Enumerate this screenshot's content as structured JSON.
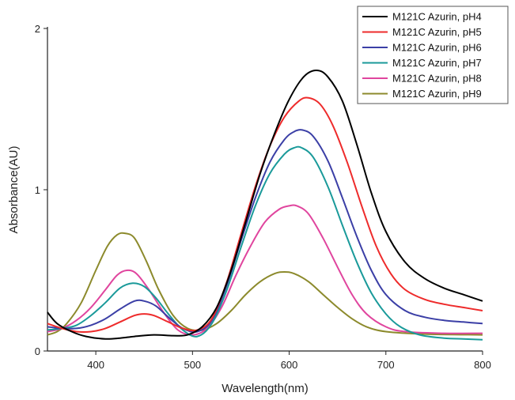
{
  "chart_data": {
    "type": "line",
    "title": "",
    "xlabel": "Wavelength(nm)",
    "ylabel": "Absorbance(AU)",
    "xlim": [
      350,
      800
    ],
    "ylim": [
      0,
      2
    ],
    "xticks": [
      400,
      500,
      600,
      700,
      800
    ],
    "yticks": [
      0,
      1,
      2
    ],
    "grid": false,
    "legend_position": "top-right",
    "series": [
      {
        "name": "M121C Azurin, pH4",
        "color": "#000000",
        "points": [
          [
            350,
            0.24
          ],
          [
            360,
            0.17
          ],
          [
            375,
            0.12
          ],
          [
            390,
            0.09
          ],
          [
            410,
            0.075
          ],
          [
            425,
            0.08
          ],
          [
            440,
            0.09
          ],
          [
            460,
            0.1
          ],
          [
            480,
            0.095
          ],
          [
            495,
            0.1
          ],
          [
            510,
            0.15
          ],
          [
            525,
            0.27
          ],
          [
            540,
            0.5
          ],
          [
            555,
            0.8
          ],
          [
            570,
            1.1
          ],
          [
            585,
            1.35
          ],
          [
            600,
            1.56
          ],
          [
            615,
            1.7
          ],
          [
            628,
            1.74
          ],
          [
            640,
            1.7
          ],
          [
            655,
            1.55
          ],
          [
            670,
            1.28
          ],
          [
            685,
            0.98
          ],
          [
            700,
            0.74
          ],
          [
            720,
            0.55
          ],
          [
            740,
            0.45
          ],
          [
            760,
            0.39
          ],
          [
            780,
            0.35
          ],
          [
            800,
            0.31
          ]
        ]
      },
      {
        "name": "M121C Azurin, pH5",
        "color": "#ee2b2b",
        "points": [
          [
            350,
            0.17
          ],
          [
            365,
            0.14
          ],
          [
            380,
            0.12
          ],
          [
            395,
            0.12
          ],
          [
            410,
            0.14
          ],
          [
            425,
            0.18
          ],
          [
            440,
            0.22
          ],
          [
            450,
            0.23
          ],
          [
            460,
            0.22
          ],
          [
            475,
            0.18
          ],
          [
            490,
            0.14
          ],
          [
            505,
            0.13
          ],
          [
            520,
            0.2
          ],
          [
            535,
            0.42
          ],
          [
            550,
            0.72
          ],
          [
            565,
            1.02
          ],
          [
            580,
            1.27
          ],
          [
            595,
            1.45
          ],
          [
            610,
            1.55
          ],
          [
            620,
            1.57
          ],
          [
            632,
            1.53
          ],
          [
            645,
            1.4
          ],
          [
            660,
            1.17
          ],
          [
            675,
            0.9
          ],
          [
            690,
            0.65
          ],
          [
            705,
            0.48
          ],
          [
            720,
            0.38
          ],
          [
            740,
            0.32
          ],
          [
            760,
            0.29
          ],
          [
            780,
            0.27
          ],
          [
            800,
            0.25
          ]
        ]
      },
      {
        "name": "M121C Azurin, pH6",
        "color": "#3b3fa6",
        "points": [
          [
            350,
            0.15
          ],
          [
            365,
            0.14
          ],
          [
            380,
            0.14
          ],
          [
            395,
            0.16
          ],
          [
            410,
            0.2
          ],
          [
            425,
            0.26
          ],
          [
            440,
            0.31
          ],
          [
            450,
            0.31
          ],
          [
            462,
            0.28
          ],
          [
            475,
            0.21
          ],
          [
            490,
            0.14
          ],
          [
            505,
            0.12
          ],
          [
            520,
            0.19
          ],
          [
            535,
            0.4
          ],
          [
            550,
            0.68
          ],
          [
            565,
            0.95
          ],
          [
            580,
            1.17
          ],
          [
            595,
            1.31
          ],
          [
            605,
            1.36
          ],
          [
            614,
            1.37
          ],
          [
            625,
            1.33
          ],
          [
            640,
            1.18
          ],
          [
            655,
            0.95
          ],
          [
            670,
            0.71
          ],
          [
            685,
            0.5
          ],
          [
            700,
            0.35
          ],
          [
            720,
            0.25
          ],
          [
            740,
            0.21
          ],
          [
            760,
            0.19
          ],
          [
            780,
            0.18
          ],
          [
            800,
            0.17
          ]
        ]
      },
      {
        "name": "M121C Azurin, pH7",
        "color": "#1a9a9a",
        "points": [
          [
            350,
            0.13
          ],
          [
            365,
            0.14
          ],
          [
            380,
            0.16
          ],
          [
            395,
            0.22
          ],
          [
            410,
            0.3
          ],
          [
            425,
            0.39
          ],
          [
            438,
            0.42
          ],
          [
            450,
            0.4
          ],
          [
            462,
            0.33
          ],
          [
            475,
            0.23
          ],
          [
            490,
            0.13
          ],
          [
            505,
            0.09
          ],
          [
            520,
            0.17
          ],
          [
            535,
            0.37
          ],
          [
            550,
            0.64
          ],
          [
            565,
            0.9
          ],
          [
            580,
            1.1
          ],
          [
            595,
            1.22
          ],
          [
            605,
            1.26
          ],
          [
            613,
            1.26
          ],
          [
            625,
            1.2
          ],
          [
            640,
            1.02
          ],
          [
            655,
            0.78
          ],
          [
            670,
            0.55
          ],
          [
            685,
            0.36
          ],
          [
            700,
            0.23
          ],
          [
            715,
            0.15
          ],
          [
            735,
            0.1
          ],
          [
            760,
            0.08
          ],
          [
            780,
            0.075
          ],
          [
            800,
            0.07
          ]
        ]
      },
      {
        "name": "M121C Azurin, pH8",
        "color": "#e0459e",
        "points": [
          [
            350,
            0.12
          ],
          [
            365,
            0.14
          ],
          [
            380,
            0.19
          ],
          [
            395,
            0.27
          ],
          [
            410,
            0.38
          ],
          [
            422,
            0.47
          ],
          [
            432,
            0.5
          ],
          [
            442,
            0.48
          ],
          [
            455,
            0.38
          ],
          [
            470,
            0.24
          ],
          [
            485,
            0.13
          ],
          [
            500,
            0.1
          ],
          [
            515,
            0.14
          ],
          [
            530,
            0.27
          ],
          [
            545,
            0.47
          ],
          [
            560,
            0.65
          ],
          [
            575,
            0.8
          ],
          [
            590,
            0.88
          ],
          [
            600,
            0.9
          ],
          [
            608,
            0.9
          ],
          [
            620,
            0.85
          ],
          [
            635,
            0.7
          ],
          [
            650,
            0.52
          ],
          [
            665,
            0.35
          ],
          [
            680,
            0.23
          ],
          [
            700,
            0.15
          ],
          [
            720,
            0.12
          ],
          [
            760,
            0.11
          ],
          [
            800,
            0.11
          ]
        ]
      },
      {
        "name": "M121C Azurin, pH9",
        "color": "#8c8a2c",
        "points": [
          [
            350,
            0.1
          ],
          [
            360,
            0.12
          ],
          [
            370,
            0.17
          ],
          [
            385,
            0.3
          ],
          [
            400,
            0.5
          ],
          [
            412,
            0.65
          ],
          [
            422,
            0.72
          ],
          [
            430,
            0.73
          ],
          [
            440,
            0.7
          ],
          [
            452,
            0.56
          ],
          [
            465,
            0.38
          ],
          [
            480,
            0.22
          ],
          [
            495,
            0.14
          ],
          [
            510,
            0.13
          ],
          [
            525,
            0.17
          ],
          [
            540,
            0.25
          ],
          [
            555,
            0.35
          ],
          [
            570,
            0.43
          ],
          [
            585,
            0.48
          ],
          [
            595,
            0.49
          ],
          [
            605,
            0.48
          ],
          [
            620,
            0.43
          ],
          [
            635,
            0.35
          ],
          [
            650,
            0.27
          ],
          [
            665,
            0.2
          ],
          [
            680,
            0.15
          ],
          [
            700,
            0.12
          ],
          [
            740,
            0.105
          ],
          [
            800,
            0.1
          ]
        ]
      }
    ]
  }
}
